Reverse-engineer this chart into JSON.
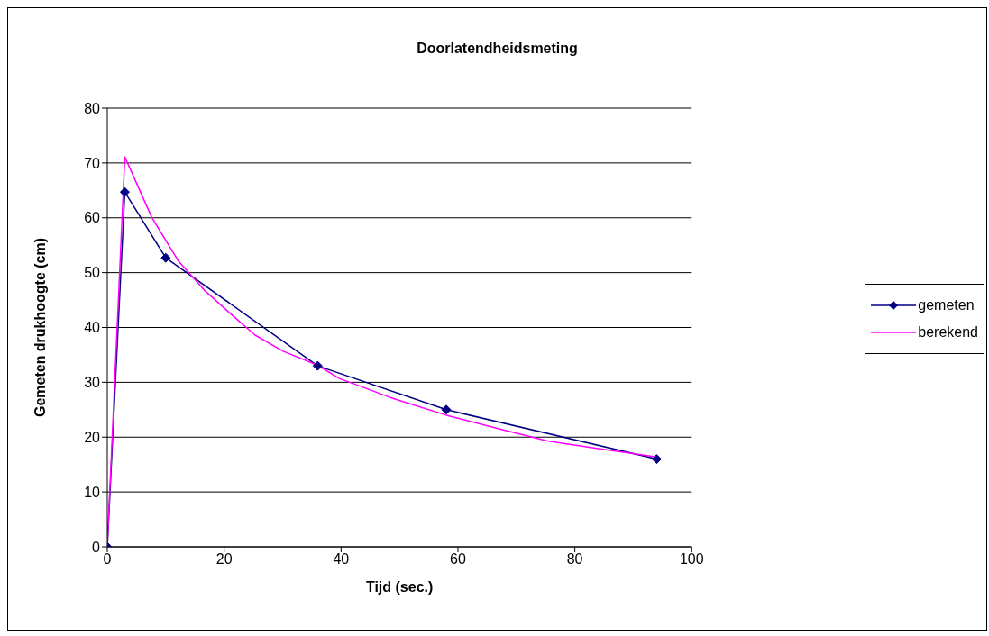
{
  "chart_data": {
    "type": "line",
    "title": "Doorlatendheidsmeting",
    "xlabel": "Tijd (sec.)",
    "ylabel": "Gemeten drukhoogte (cm)",
    "xlim": [
      0,
      100
    ],
    "xticks": [
      0,
      20,
      40,
      60,
      80,
      100
    ],
    "ylim": [
      0,
      80
    ],
    "yticks": [
      0,
      10,
      20,
      30,
      40,
      50,
      60,
      70,
      80
    ],
    "grid": "y",
    "legend": "right",
    "series": [
      {
        "name": "gemeten",
        "color": "#000080",
        "marker": "diamond",
        "x": [
          0,
          3,
          10,
          36,
          58,
          94
        ],
        "values": [
          0,
          64.7,
          52.7,
          33,
          25,
          16
        ]
      },
      {
        "name": "berekend",
        "color": "#ff00ff",
        "marker": "none",
        "x": [
          0,
          3,
          7.6,
          12.1,
          16.6,
          21.2,
          25.3,
          30,
          36,
          39.7,
          48.5,
          58,
          66.7,
          75.3,
          84,
          94
        ],
        "values": [
          0,
          71.1,
          60.1,
          52.2,
          46.8,
          42.4,
          38.6,
          35.7,
          33.1,
          30.7,
          27.2,
          24,
          21.6,
          19.3,
          17.9,
          16.4
        ]
      }
    ]
  }
}
